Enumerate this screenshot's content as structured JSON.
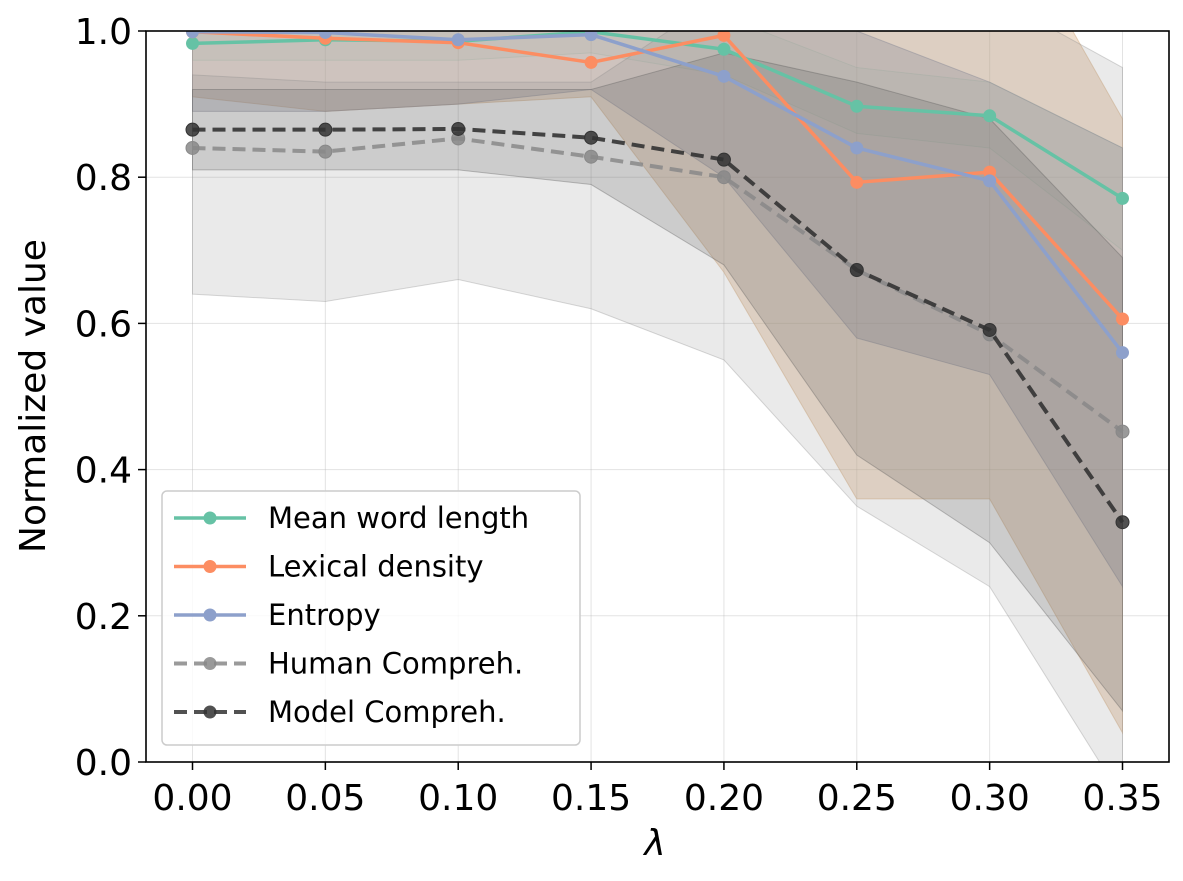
{
  "chart_data": {
    "type": "line",
    "title": "",
    "xlabel": "λ",
    "ylabel": "Normalized value",
    "x": [
      0.0,
      0.05,
      0.1,
      0.15,
      0.2,
      0.25,
      0.3,
      0.35
    ],
    "x_ticks": [
      "0.00",
      "0.05",
      "0.10",
      "0.15",
      "0.20",
      "0.25",
      "0.30",
      "0.35"
    ],
    "y_ticks": [
      "0.0",
      "0.2",
      "0.4",
      "0.6",
      "0.8",
      "1.0"
    ],
    "xlim": [
      -0.0175,
      0.3675
    ],
    "ylim": [
      0.0,
      1.0
    ],
    "grid": true,
    "legend_position": "lower-left",
    "series": [
      {
        "name": "Mean word length",
        "color": "#66c2a5",
        "dashed": false,
        "values": [
          0.983,
          0.988,
          0.986,
          0.999,
          0.975,
          0.897,
          0.884,
          0.771
        ],
        "band": {
          "lower": [
            0.96,
            0.96,
            0.96,
            0.97,
            0.94,
            0.86,
            0.84,
            0.7
          ],
          "upper": [
            1.01,
            1.02,
            1.02,
            1.02,
            1.02,
            0.95,
            0.93,
            0.84
          ],
          "color": "#66c2a5",
          "opacity": 0.12
        }
      },
      {
        "name": "Lexical density",
        "color": "#fc8d62",
        "dashed": false,
        "values": [
          0.999,
          0.99,
          0.984,
          0.957,
          0.994,
          0.793,
          0.807,
          0.606
        ],
        "band": {
          "lower": [
            0.91,
            0.89,
            0.9,
            0.91,
            0.67,
            0.36,
            0.36,
            0.04
          ],
          "upper": [
            1.08,
            1.08,
            1.08,
            1.06,
            1.2,
            1.2,
            1.2,
            0.88
          ],
          "color": "#d9b38c",
          "opacity": 0.42
        }
      },
      {
        "name": "Entropy",
        "color": "#8da0cb",
        "dashed": false,
        "values": [
          0.999,
          0.998,
          0.988,
          0.995,
          0.938,
          0.84,
          0.795,
          0.56
        ],
        "band": {
          "lower": [
            0.89,
            0.89,
            0.9,
            0.92,
            0.8,
            0.58,
            0.53,
            0.24
          ],
          "upper": [
            1.1,
            1.1,
            1.1,
            1.1,
            1.1,
            1.0,
            0.93,
            0.84
          ],
          "color": "#8a8a9a",
          "opacity": 0.32
        }
      },
      {
        "name": "Human Compreh.",
        "color": "#888888",
        "dashed": true,
        "values": [
          0.84,
          0.835,
          0.853,
          0.828,
          0.8,
          0.673,
          0.585,
          0.452
        ],
        "band": {
          "lower": [
            0.64,
            0.63,
            0.66,
            0.62,
            0.55,
            0.35,
            0.24,
            -0.05
          ],
          "upper": [
            0.94,
            0.93,
            0.93,
            0.93,
            1.05,
            1.05,
            1.05,
            0.95
          ],
          "color": "#888888",
          "opacity": 0.18
        }
      },
      {
        "name": "Model Compreh.",
        "color": "#333333",
        "dashed": true,
        "values": [
          0.865,
          0.865,
          0.866,
          0.854,
          0.824,
          0.673,
          0.591,
          0.328
        ],
        "band": {
          "lower": [
            0.81,
            0.81,
            0.81,
            0.79,
            0.68,
            0.42,
            0.3,
            0.07
          ],
          "upper": [
            0.92,
            0.92,
            0.92,
            0.92,
            0.97,
            0.93,
            0.88,
            0.69
          ],
          "color": "#555555",
          "opacity": 0.2
        }
      }
    ]
  }
}
